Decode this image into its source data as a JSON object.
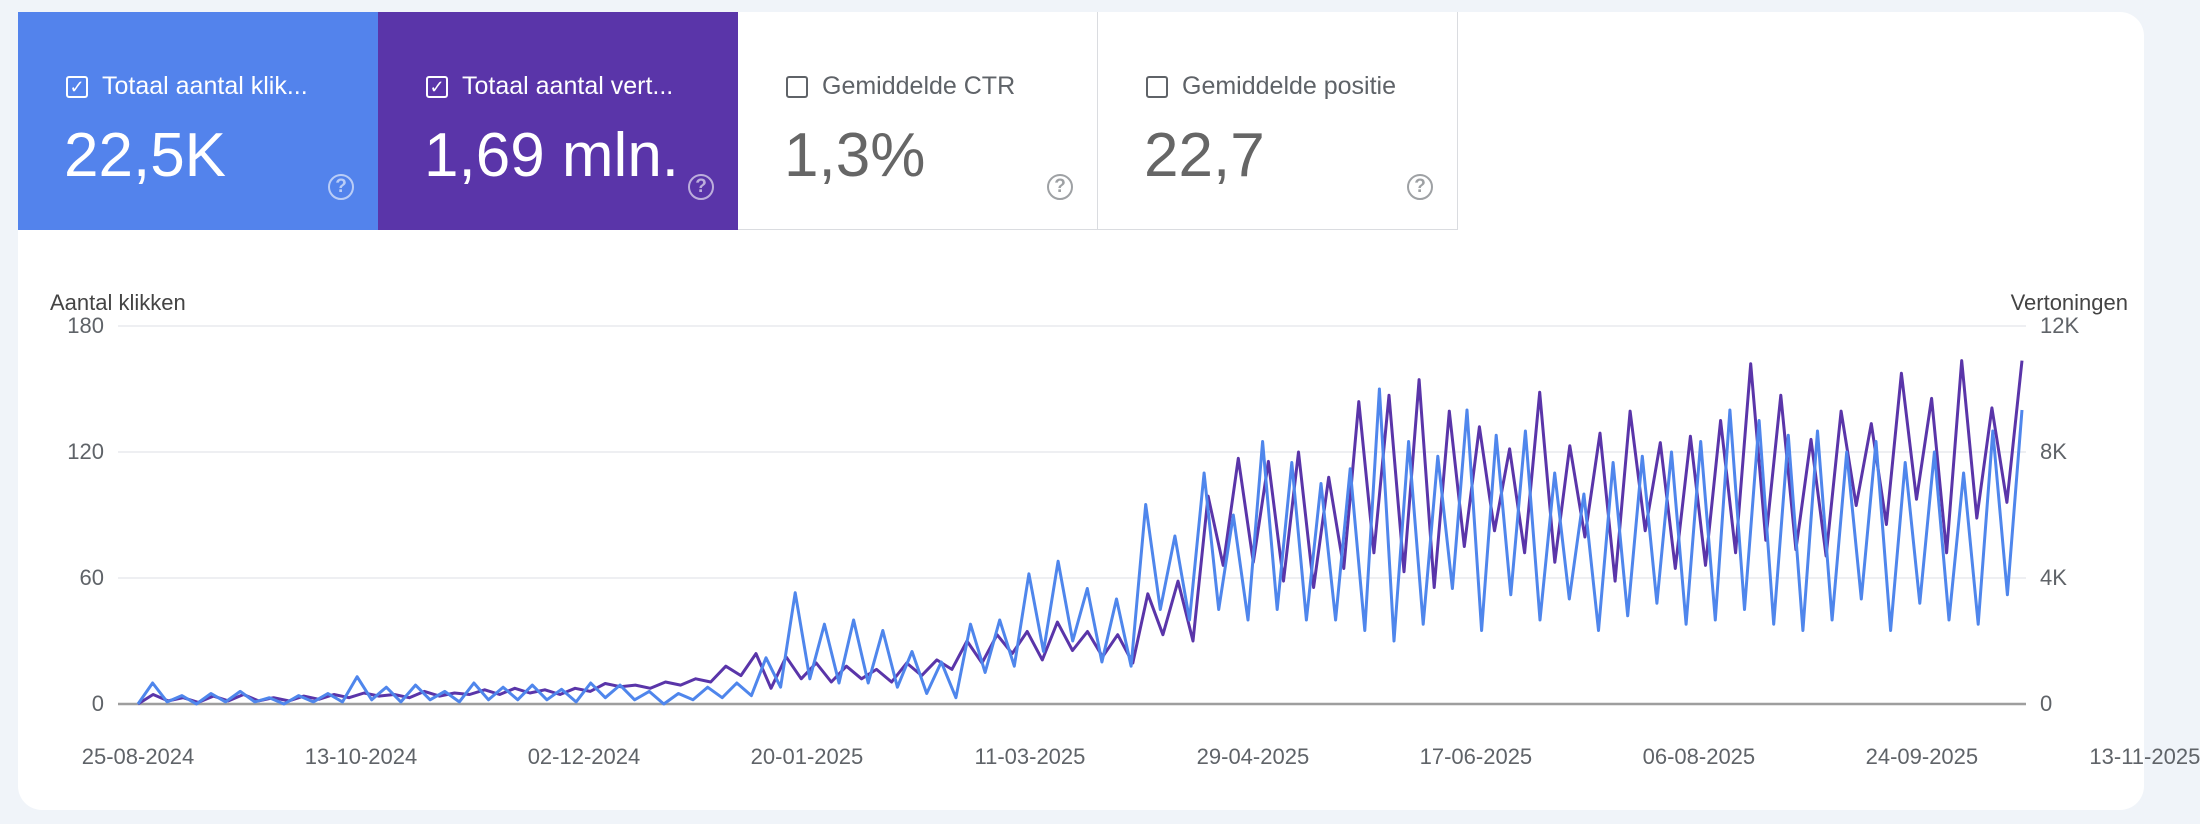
{
  "cards": [
    {
      "label": "Totaal aantal klik...",
      "value": "22,5K",
      "checked": true,
      "color": "#5383ec"
    },
    {
      "label": "Totaal aantal vert...",
      "value": "1,69 mln.",
      "checked": true,
      "color": "#5a35a9"
    },
    {
      "label": "Gemiddelde CTR",
      "value": "1,3%",
      "checked": false
    },
    {
      "label": "Gemiddelde positie",
      "value": "22,7",
      "checked": false
    }
  ],
  "check_glyph": "✓",
  "help_glyph": "?",
  "chart_data": {
    "type": "line",
    "left_axis_title": "Aantal klikken",
    "right_axis_title": "Vertoningen",
    "left_ticks": [
      "0",
      "60",
      "120",
      "180"
    ],
    "right_ticks": [
      "0",
      "4K",
      "8K",
      "12K"
    ],
    "left_ylim": [
      0,
      180
    ],
    "right_ylim": [
      0,
      12000
    ],
    "x_labels": [
      "25-08-2024",
      "13-10-2024",
      "02-12-2024",
      "20-01-2025",
      "11-03-2025",
      "29-04-2025",
      "17-06-2025",
      "06-08-2025",
      "24-09-2025",
      "13-11-2025"
    ],
    "x_range_days": [
      0,
      414
    ],
    "grid": true,
    "series": [
      {
        "name": "Totaal aantal klikken",
        "axis": "left",
        "color": "#4f86ec",
        "values": [
          0,
          10,
          1,
          4,
          0,
          5,
          1,
          6,
          1,
          3,
          0,
          4,
          1,
          5,
          1,
          13,
          2,
          8,
          1,
          9,
          2,
          6,
          1,
          10,
          2,
          8,
          2,
          9,
          2,
          7,
          1,
          10,
          3,
          9,
          2,
          6,
          0,
          5,
          2,
          8,
          3,
          10,
          4,
          22,
          8,
          53,
          12,
          38,
          10,
          40,
          10,
          35,
          8,
          25,
          5,
          20,
          3,
          38,
          15,
          40,
          18,
          62,
          25,
          68,
          30,
          55,
          20,
          50,
          18,
          95,
          45,
          80,
          40,
          110,
          45,
          90,
          40,
          125,
          45,
          115,
          40,
          105,
          40,
          112,
          35,
          150,
          30,
          125,
          38,
          118,
          55,
          140,
          35,
          128,
          52,
          130,
          40,
          110,
          50,
          100,
          35,
          115,
          42,
          118,
          48,
          120,
          38,
          125,
          40,
          140,
          45,
          135,
          38,
          128,
          35,
          130,
          40,
          120,
          50,
          125,
          35,
          115,
          48,
          120,
          40,
          110,
          38,
          130,
          52,
          140
        ]
      },
      {
        "name": "Totaal aantal vertoningen",
        "axis": "right",
        "color": "#5a35a9",
        "values": [
          0,
          300,
          100,
          200,
          50,
          250,
          100,
          300,
          100,
          200,
          100,
          250,
          150,
          300,
          200,
          350,
          250,
          300,
          200,
          400,
          250,
          350,
          300,
          450,
          300,
          500,
          350,
          450,
          300,
          500,
          400,
          650,
          550,
          600,
          500,
          700,
          600,
          800,
          700,
          1200,
          900,
          1600,
          500,
          1500,
          800,
          1300,
          700,
          1200,
          800,
          1100,
          700,
          1300,
          900,
          1400,
          1100,
          2000,
          1300,
          2200,
          1600,
          2300,
          1400,
          2600,
          1700,
          2300,
          1500,
          2200,
          1300,
          3500,
          2200,
          3900,
          2000,
          6600,
          4400,
          7800,
          4500,
          7700,
          3900,
          8000,
          3700,
          7200,
          4300,
          9600,
          4800,
          9800,
          4200,
          10300,
          3700,
          9300,
          5000,
          8800,
          5500,
          8100,
          4800,
          9900,
          4500,
          8200,
          5300,
          8600,
          3900,
          9300,
          5500,
          8300,
          4300,
          8500,
          4400,
          9000,
          4800,
          10800,
          5200,
          9800,
          4900,
          8400,
          4700,
          9300,
          6300,
          8900,
          5700,
          10500,
          6500,
          9700,
          4800,
          10900,
          5900,
          9400,
          6400,
          10900
        ]
      }
    ]
  }
}
